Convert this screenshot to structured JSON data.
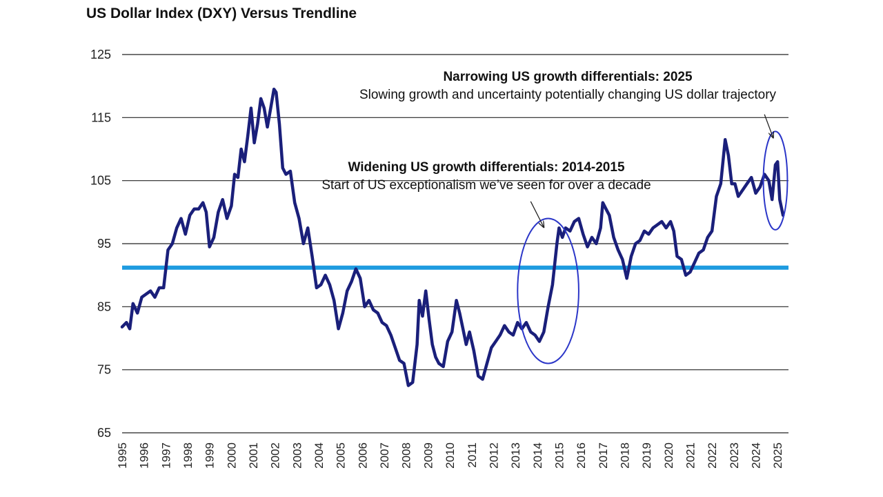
{
  "title": "US Dollar Index (DXY) Versus Trendline",
  "colors": {
    "series": "#1a1f7a",
    "trendline": "#1e9be0",
    "highlight_ellipse": "#2b36c8",
    "grid": "#222222"
  },
  "chart_data": {
    "type": "line",
    "title": "US Dollar Index (DXY) Versus Trendline",
    "xlabel": "",
    "ylabel": "",
    "xlim": [
      1995,
      2025.5
    ],
    "ylim": [
      65,
      125
    ],
    "yticks": [
      65,
      75,
      85,
      95,
      105,
      115,
      125
    ],
    "xticks": [
      1995,
      1996,
      1997,
      1998,
      1999,
      2000,
      2001,
      2002,
      2003,
      2004,
      2005,
      2006,
      2007,
      2008,
      2009,
      2010,
      2011,
      2012,
      2013,
      2014,
      2015,
      2016,
      2017,
      2018,
      2019,
      2020,
      2021,
      2022,
      2023,
      2024,
      2025
    ],
    "grid": "horizontal",
    "series": [
      {
        "name": "US Dollar Index (DXY)",
        "x": [
          1995.0,
          1995.2,
          1995.35,
          1995.5,
          1995.7,
          1995.9,
          1996.1,
          1996.3,
          1996.5,
          1996.7,
          1996.9,
          1997.1,
          1997.3,
          1997.5,
          1997.7,
          1997.9,
          1998.1,
          1998.3,
          1998.5,
          1998.7,
          1998.85,
          1999.0,
          1999.2,
          1999.4,
          1999.6,
          1999.8,
          2000.0,
          2000.15,
          2000.3,
          2000.45,
          2000.6,
          2000.75,
          2000.9,
          2001.05,
          2001.2,
          2001.35,
          2001.5,
          2001.65,
          2001.8,
          2001.95,
          2002.05,
          2002.2,
          2002.35,
          2002.5,
          2002.7,
          2002.9,
          2003.1,
          2003.3,
          2003.5,
          2003.7,
          2003.9,
          2004.1,
          2004.3,
          2004.5,
          2004.7,
          2004.9,
          2005.1,
          2005.3,
          2005.5,
          2005.7,
          2005.9,
          2006.1,
          2006.3,
          2006.5,
          2006.7,
          2006.9,
          2007.1,
          2007.3,
          2007.5,
          2007.7,
          2007.9,
          2008.1,
          2008.3,
          2008.5,
          2008.6,
          2008.75,
          2008.9,
          2009.05,
          2009.2,
          2009.35,
          2009.5,
          2009.7,
          2009.9,
          2010.1,
          2010.3,
          2010.45,
          2010.6,
          2010.75,
          2010.9,
          2011.1,
          2011.3,
          2011.5,
          2011.7,
          2011.9,
          2012.1,
          2012.3,
          2012.5,
          2012.7,
          2012.9,
          2013.1,
          2013.3,
          2013.5,
          2013.7,
          2013.9,
          2014.1,
          2014.3,
          2014.5,
          2014.7,
          2014.9,
          2015.0,
          2015.15,
          2015.3,
          2015.5,
          2015.7,
          2015.9,
          2016.1,
          2016.3,
          2016.5,
          2016.7,
          2016.9,
          2017.0,
          2017.15,
          2017.3,
          2017.5,
          2017.7,
          2017.9,
          2018.1,
          2018.3,
          2018.5,
          2018.7,
          2018.9,
          2019.1,
          2019.3,
          2019.5,
          2019.7,
          2019.9,
          2020.1,
          2020.25,
          2020.4,
          2020.6,
          2020.8,
          2021.0,
          2021.2,
          2021.4,
          2021.6,
          2021.8,
          2022.0,
          2022.2,
          2022.4,
          2022.6,
          2022.75,
          2022.9,
          2023.05,
          2023.2,
          2023.4,
          2023.6,
          2023.8,
          2024.0,
          2024.2,
          2024.4,
          2024.6,
          2024.75,
          2024.9,
          2025.0,
          2025.1,
          2025.25
        ],
        "values": [
          81.8,
          82.5,
          81.5,
          85.5,
          84.0,
          86.5,
          87.0,
          87.5,
          86.5,
          88.0,
          88.0,
          94.0,
          95.0,
          97.5,
          99.0,
          96.5,
          99.5,
          100.5,
          100.5,
          101.5,
          100.0,
          94.5,
          96.0,
          100.0,
          102.0,
          99.0,
          101.0,
          106.0,
          105.5,
          110.0,
          108.0,
          112.0,
          116.5,
          111.0,
          114.0,
          118.0,
          116.5,
          113.5,
          116.5,
          119.5,
          119.0,
          114.0,
          107.0,
          106.0,
          106.5,
          101.5,
          99.0,
          95.0,
          97.5,
          93.0,
          88.0,
          88.5,
          90.0,
          88.5,
          86.0,
          81.5,
          84.0,
          87.5,
          89.0,
          91.0,
          89.5,
          85.0,
          86.0,
          84.5,
          84.0,
          82.5,
          82.0,
          80.5,
          78.5,
          76.5,
          76.0,
          72.5,
          73.0,
          79.0,
          86.0,
          83.5,
          87.5,
          83.0,
          79.0,
          77.0,
          76.0,
          75.5,
          79.5,
          81.0,
          86.0,
          84.0,
          81.5,
          79.0,
          81.0,
          78.0,
          74.0,
          73.5,
          76.0,
          78.5,
          79.5,
          80.5,
          82.0,
          81.0,
          80.5,
          82.5,
          81.5,
          82.5,
          81.0,
          80.5,
          79.5,
          81.0,
          85.0,
          88.5,
          95.0,
          97.5,
          96.0,
          97.5,
          97.0,
          98.5,
          99.0,
          96.5,
          94.5,
          96.0,
          95.0,
          97.5,
          101.5,
          100.5,
          99.5,
          96.0,
          94.0,
          92.5,
          89.5,
          93.0,
          95.0,
          95.5,
          97.0,
          96.5,
          97.5,
          98.0,
          98.5,
          97.5,
          98.5,
          97.0,
          93.0,
          92.5,
          90.0,
          90.5,
          92.0,
          93.5,
          94.0,
          96.0,
          97.0,
          102.5,
          104.5,
          111.5,
          109.0,
          104.5,
          104.5,
          102.5,
          103.5,
          104.5,
          105.5,
          103.0,
          104.0,
          106.0,
          105.0,
          102.0,
          107.5,
          108.0,
          102.0,
          99.5
        ]
      },
      {
        "name": "Trendline",
        "x": [
          1995,
          2025.5
        ],
        "values": [
          91.2,
          91.2
        ]
      }
    ],
    "annotations": [
      {
        "name": "narrowing",
        "title": "Narrowing US growth differentials: 2025",
        "subtitle": "Slowing growth and uncertainty potentially changing US dollar trajectory",
        "ellipse_center": [
          2024.9,
          105
        ],
        "ellipse_radius": [
          0.55,
          7.8
        ],
        "arrow_from": [
          2024.4,
          115.5
        ],
        "arrow_to": [
          2024.8,
          111.8
        ]
      },
      {
        "name": "widening",
        "title": "Widening US growth differentials: 2014-2015",
        "subtitle": "Start of US exceptionalism we’ve seen for over a decade",
        "ellipse_center": [
          2014.5,
          87.5
        ],
        "ellipse_radius": [
          1.4,
          11.5
        ],
        "arrow_from": [
          2013.7,
          101.7
        ],
        "arrow_to": [
          2014.3,
          97.6
        ]
      }
    ]
  }
}
